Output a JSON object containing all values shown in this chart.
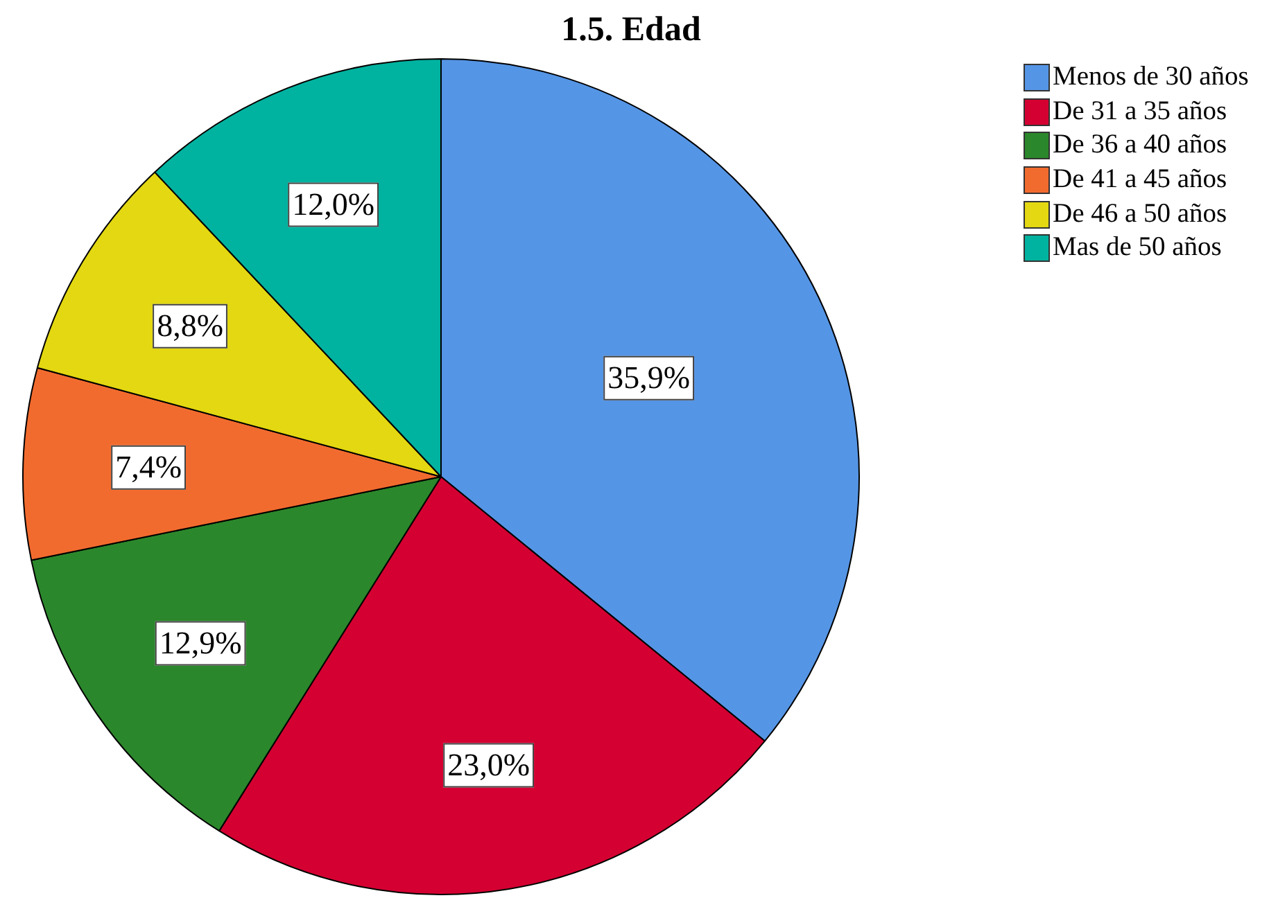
{
  "chart_data": {
    "type": "pie",
    "title": "1.5. Edad",
    "categories": [
      "Menos de 30 años",
      "De 31 a 35 años",
      "De 36 a 40 años",
      "De 41 a 45 años",
      "De 46 a 50 años",
      "Mas de 50 años"
    ],
    "values": [
      35.9,
      23.0,
      12.9,
      7.4,
      8.8,
      12.0
    ],
    "colors": [
      "#5595e5",
      "#d50032",
      "#2b872b",
      "#f26b2e",
      "#e3d811",
      "#00b3a0"
    ],
    "value_labels": [
      "35,9%",
      "23,0%",
      "12,9%",
      "7,4%",
      "8,8%",
      "12,0%"
    ],
    "legend": "top right"
  }
}
